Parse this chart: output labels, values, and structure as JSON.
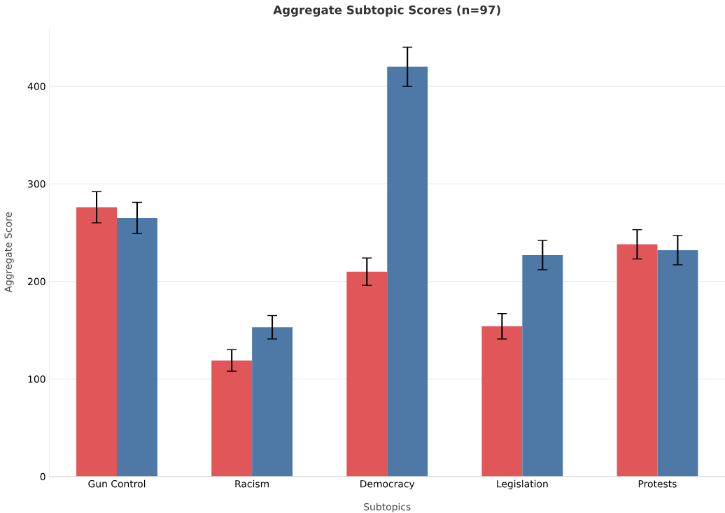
{
  "chart_data": {
    "type": "bar",
    "title": "Aggregate Subtopic Scores (n=97)",
    "xlabel": "Subtopics",
    "ylabel": "Aggregate Score",
    "categories": [
      "Gun Control",
      "Racism",
      "Democracy",
      "Legislation",
      "Protests"
    ],
    "series": [
      {
        "color": "#e15759",
        "values": [
          276,
          119,
          210,
          154,
          238
        ],
        "errors": [
          16,
          11,
          14,
          13,
          15
        ]
      },
      {
        "color": "#4e79a7",
        "values": [
          265,
          153,
          420,
          227,
          232
        ],
        "errors": [
          16,
          12,
          20,
          15,
          15
        ]
      }
    ],
    "ylim": [
      0,
      460
    ],
    "yticks": [
      0,
      100,
      200,
      300,
      400
    ],
    "grid": "y",
    "legend": false
  }
}
